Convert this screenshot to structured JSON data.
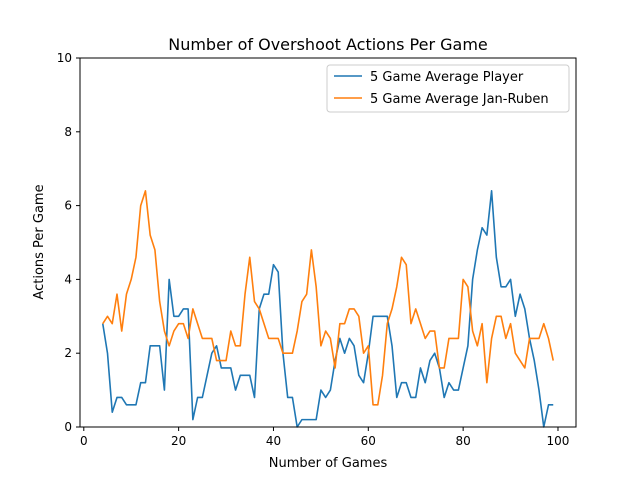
{
  "chart_data": {
    "type": "line",
    "title": "Number of Overshoot Actions Per Game",
    "xlabel": "Number of Games",
    "ylabel": "Actions Per Game",
    "xlim": [
      -0.8,
      103.8
    ],
    "ylim": [
      0,
      10
    ],
    "xticks": [
      0,
      20,
      40,
      60,
      80,
      100
    ],
    "yticks": [
      0,
      2,
      4,
      6,
      8,
      10
    ],
    "grid": false,
    "legend_position": "top-right",
    "x": [
      4,
      5,
      6,
      7,
      8,
      9,
      10,
      11,
      12,
      13,
      14,
      15,
      16,
      17,
      18,
      19,
      20,
      21,
      22,
      23,
      24,
      25,
      26,
      27,
      28,
      29,
      30,
      31,
      32,
      33,
      34,
      35,
      36,
      37,
      38,
      39,
      40,
      41,
      42,
      43,
      44,
      45,
      46,
      47,
      48,
      49,
      50,
      51,
      52,
      53,
      54,
      55,
      56,
      57,
      58,
      59,
      60,
      61,
      62,
      63,
      64,
      65,
      66,
      67,
      68,
      69,
      70,
      71,
      72,
      73,
      74,
      75,
      76,
      77,
      78,
      79,
      80,
      81,
      82,
      83,
      84,
      85,
      86,
      87,
      88,
      89,
      90,
      91,
      92,
      93,
      94,
      95,
      96,
      97,
      98,
      99
    ],
    "series": [
      {
        "name": "5 Game Average Player",
        "color": "#1f77b4",
        "values": [
          2.8,
          2.0,
          0.4,
          0.8,
          0.8,
          0.6,
          0.6,
          0.6,
          1.2,
          1.2,
          2.2,
          2.2,
          2.2,
          1.0,
          4.0,
          3.0,
          3.0,
          3.2,
          3.2,
          0.2,
          0.8,
          0.8,
          1.4,
          2.0,
          2.2,
          1.6,
          1.6,
          1.6,
          1.0,
          1.4,
          1.4,
          1.4,
          0.8,
          3.2,
          3.6,
          3.6,
          4.4,
          4.2,
          2.0,
          0.8,
          0.8,
          0.0,
          0.2,
          0.2,
          0.2,
          0.2,
          1.0,
          0.8,
          1.0,
          1.8,
          2.4,
          2.0,
          2.4,
          2.2,
          1.4,
          1.2,
          2.0,
          3.0,
          3.0,
          3.0,
          3.0,
          2.2,
          0.8,
          1.2,
          1.2,
          0.8,
          0.8,
          1.6,
          1.2,
          1.8,
          2.0,
          1.6,
          0.8,
          1.2,
          1.0,
          1.0,
          1.6,
          2.2,
          4.0,
          4.8,
          5.4,
          5.2,
          6.4,
          4.6,
          3.8,
          3.8,
          4.0,
          3.0,
          3.6,
          3.2,
          2.4,
          1.8,
          1.0,
          0.0,
          0.6,
          0.6
        ]
      },
      {
        "name": "5 Game Average Jan-Ruben",
        "color": "#ff7f0e",
        "values": [
          2.8,
          3.0,
          2.8,
          3.6,
          2.6,
          3.6,
          4.0,
          4.6,
          6.0,
          6.4,
          5.2,
          4.8,
          3.4,
          2.6,
          2.2,
          2.6,
          2.8,
          2.8,
          2.4,
          3.2,
          2.8,
          2.4,
          2.4,
          2.4,
          1.8,
          1.8,
          1.8,
          2.6,
          2.2,
          2.2,
          3.6,
          4.6,
          3.4,
          3.2,
          2.8,
          2.4,
          2.4,
          2.4,
          2.0,
          2.0,
          2.0,
          2.6,
          3.4,
          3.6,
          4.8,
          3.8,
          2.2,
          2.6,
          2.4,
          1.6,
          2.8,
          2.8,
          3.2,
          3.2,
          3.0,
          2.0,
          2.2,
          0.6,
          0.6,
          1.4,
          2.8,
          3.2,
          3.8,
          4.6,
          4.4,
          2.8,
          3.2,
          2.8,
          2.4,
          2.6,
          2.6,
          1.6,
          1.6,
          2.4,
          2.4,
          2.4,
          4.0,
          3.8,
          2.6,
          2.2,
          2.8,
          1.2,
          2.4,
          3.0,
          3.0,
          2.4,
          2.8,
          2.0,
          1.8,
          1.6,
          2.4,
          2.4,
          2.4,
          2.8,
          2.4,
          1.8
        ]
      }
    ]
  }
}
